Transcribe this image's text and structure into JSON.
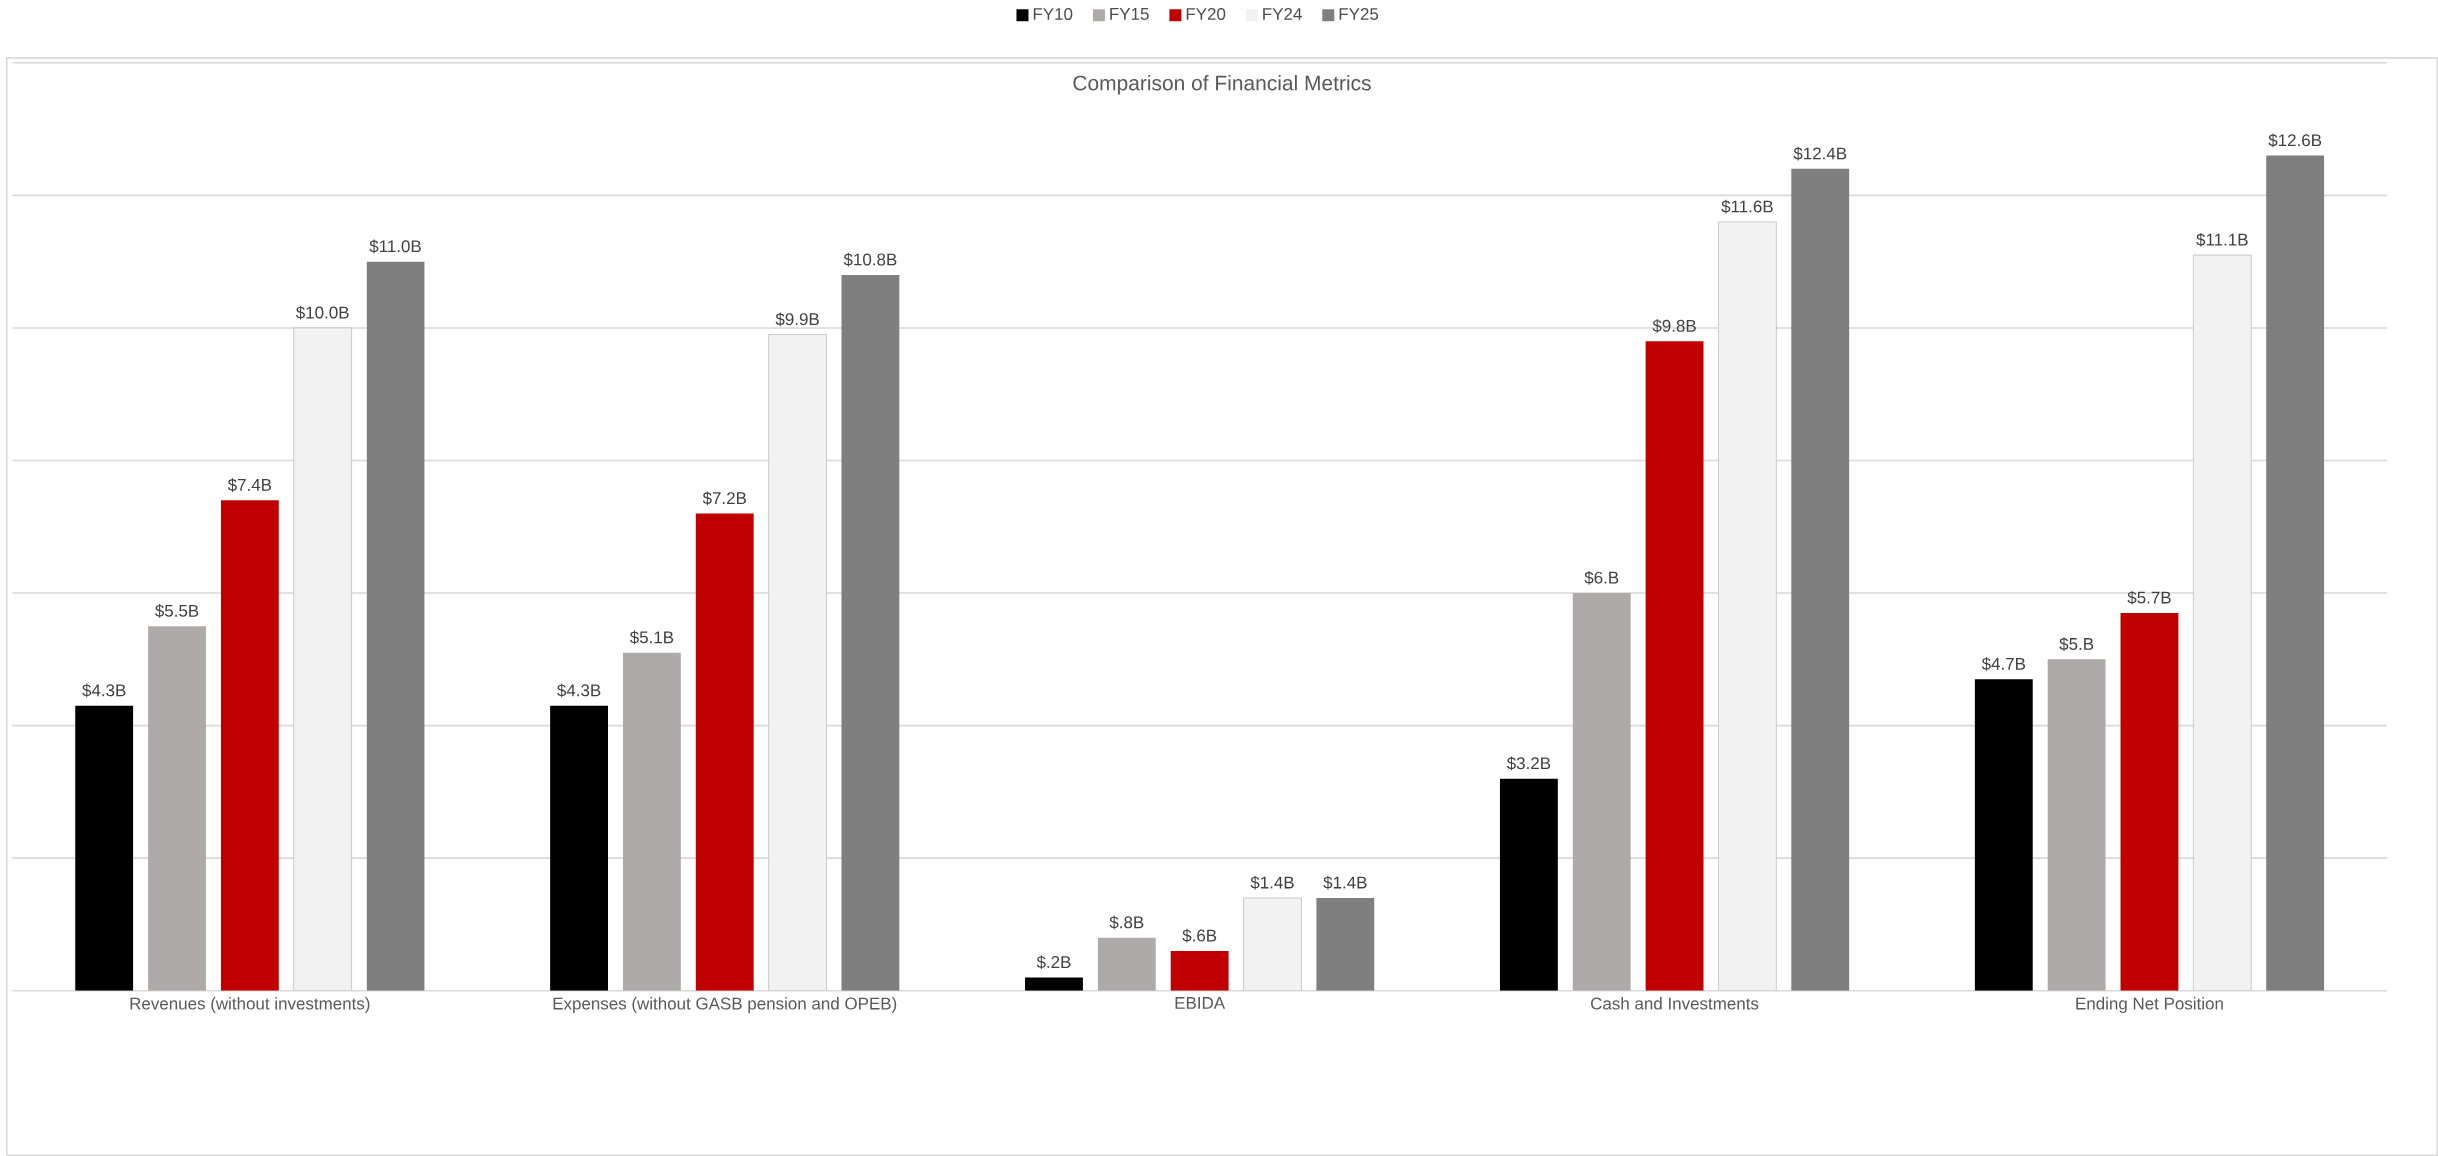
{
  "chart_data": {
    "type": "bar",
    "title": "Comparison of Financial Metrics",
    "categories": [
      "Revenues (without investments)",
      "Expenses (without GASB pension and OPEB)",
      "EBIDA",
      "Cash and Investments",
      "Ending Net Position"
    ],
    "series": [
      {
        "name": "FY10",
        "color": "#000000",
        "values": [
          4.3,
          4.3,
          0.2,
          3.2,
          4.7
        ],
        "value_labels": [
          "$4.3B",
          "$4.3B",
          "$.2B",
          "$3.2B",
          "$4.7B"
        ]
      },
      {
        "name": "FY15",
        "color": "#aeaaaa",
        "values": [
          5.5,
          5.1,
          0.8,
          6,
          5
        ],
        "value_labels": [
          "$5.5B",
          "$5.1B",
          "$.8B",
          "$6.B",
          "$5.B"
        ]
      },
      {
        "name": "FY20",
        "color": "#c00000",
        "values": [
          7.4,
          7.2,
          0.6,
          9.8,
          5.7
        ],
        "value_labels": [
          "$7.4B",
          "$7.2B",
          "$.6B",
          "$9.8B",
          "$5.7B"
        ]
      },
      {
        "name": "FY24",
        "color": "#f2f2f2",
        "values": [
          10.0,
          9.9,
          1.4,
          11.6,
          11.1
        ],
        "value_labels": [
          "$10.0B",
          "$9.9B",
          "$1.4B",
          "$11.6B",
          "$11.1B"
        ]
      },
      {
        "name": "FY25",
        "color": "#7f7f7f",
        "values": [
          11.0,
          10.8,
          1.4,
          12.4,
          12.6
        ],
        "value_labels": [
          "$11.0B",
          "$10.8B",
          "$1.4B",
          "$12.4B",
          "$12.6B"
        ]
      }
    ],
    "ylim": [
      0,
      14
    ],
    "yticks": [
      {
        "value": 0,
        "label": null
      },
      {
        "value": 2,
        "label": null
      },
      {
        "value": 4,
        "label": null
      },
      {
        "value": 6,
        "label": null
      },
      {
        "value": 8,
        "label": null
      },
      {
        "value": 10,
        "label": null
      },
      {
        "value": 12,
        "label": null
      },
      {
        "value": 14,
        "label": null
      }
    ],
    "grid": "y",
    "legend": "top",
    "tick_labels": "x"
  }
}
